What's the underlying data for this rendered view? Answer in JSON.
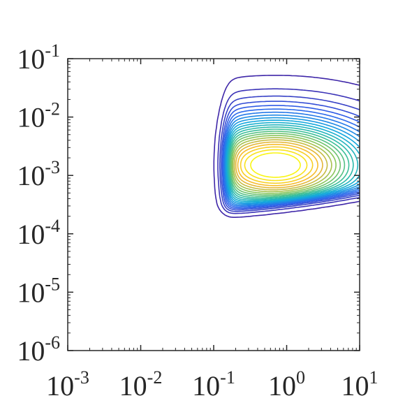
{
  "chart_data": {
    "type": "contour",
    "title": "",
    "xlabel": "",
    "ylabel": "",
    "xscale": "log",
    "yscale": "log",
    "xlim": [
      0.001,
      10
    ],
    "ylim": [
      1e-06,
      0.1
    ],
    "grid": false,
    "legend": "none",
    "colormap": "parula",
    "x_ticks": [
      {
        "value": 0.001,
        "base": "10",
        "exp": "-3"
      },
      {
        "value": 0.01,
        "base": "10",
        "exp": "-2"
      },
      {
        "value": 0.1,
        "base": "10",
        "exp": "-1"
      },
      {
        "value": 1,
        "base": "10",
        "exp": "0"
      },
      {
        "value": 10,
        "base": "10",
        "exp": "1"
      }
    ],
    "y_ticks": [
      {
        "value": 0.1,
        "base": "10",
        "exp": "-1"
      },
      {
        "value": 0.01,
        "base": "10",
        "exp": "-2"
      },
      {
        "value": 0.001,
        "base": "10",
        "exp": "-3"
      },
      {
        "value": 0.0001,
        "base": "10",
        "exp": "-4"
      },
      {
        "value": 1e-05,
        "base": "10",
        "exp": "-5"
      },
      {
        "value": 1e-06,
        "base": "10",
        "exp": "-6"
      }
    ],
    "density_model": {
      "peak_x": 0.7,
      "peak_y": 0.0015,
      "x_cutoff": 0.15,
      "y_floor_left": 0.00025,
      "y_floor_right": 0.0005,
      "level_count": 24
    },
    "colors": {
      "axis": "#262626",
      "low": "#3e26a8",
      "high": "#f9fb15"
    }
  }
}
